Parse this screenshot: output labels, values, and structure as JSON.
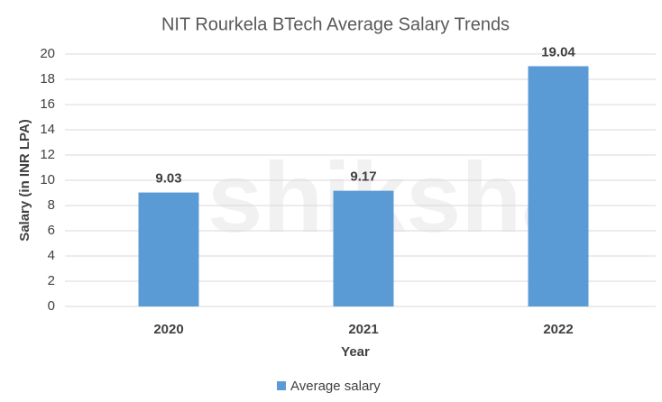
{
  "chart_data": {
    "type": "bar",
    "title": "NIT Rourkela BTech Average Salary Trends",
    "x_label": "Year",
    "y_label": "Salary (in INR LPA)",
    "categories": [
      "2020",
      "2021",
      "2022"
    ],
    "series": [
      {
        "name": "Average salary",
        "color": "#5b9bd5",
        "values": [
          9.03,
          9.17,
          19.04
        ]
      }
    ],
    "ylim": [
      0,
      20
    ],
    "yticks": [
      0,
      2,
      4,
      6,
      8,
      10,
      12,
      14,
      16,
      18,
      20
    ],
    "grid": true,
    "legend": "bottom",
    "watermark": "shiksha"
  }
}
